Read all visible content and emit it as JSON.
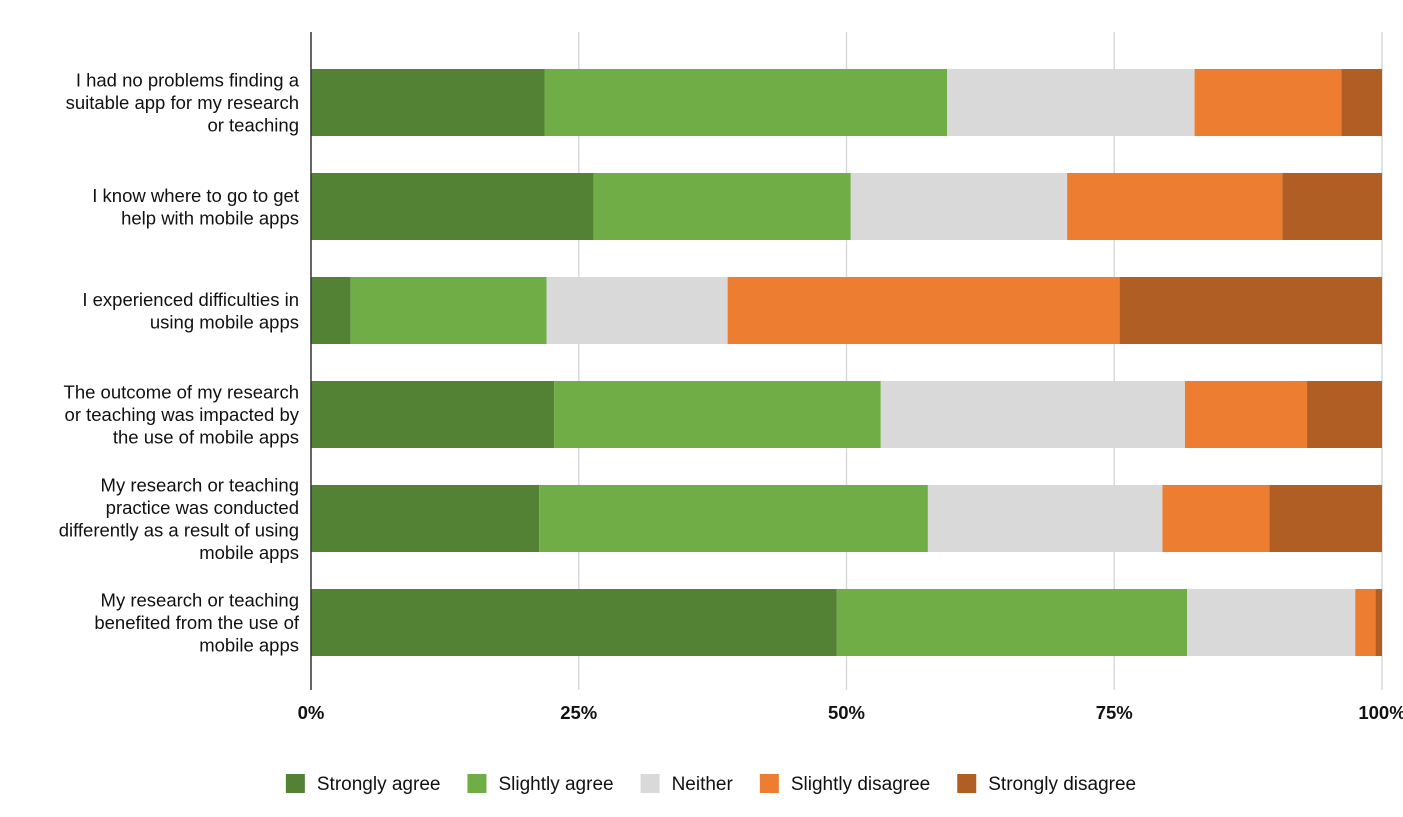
{
  "chart_data": {
    "type": "bar",
    "orientation": "horizontal",
    "stacked": "100%",
    "title": "",
    "xlabel": "",
    "ylabel": "",
    "xlim": [
      0,
      100
    ],
    "x_ticks": [
      "0%",
      "25%",
      "50%",
      "75%",
      "100%"
    ],
    "grid": true,
    "legend_position": "bottom",
    "categories": [
      [
        "I had no problems finding a",
        "suitable app for my research",
        "or teaching"
      ],
      [
        "I know where to go to get",
        "help with mobile apps"
      ],
      [
        "I experienced difficulties in",
        "using mobile apps"
      ],
      [
        "The outcome of my research",
        "or teaching was impacted by",
        "the use of mobile apps"
      ],
      [
        "My research or teaching",
        "practice was conducted",
        "differently as a result of using",
        "mobile apps"
      ],
      [
        "My research or teaching",
        "benefited from the use of",
        "mobile apps"
      ]
    ],
    "series": [
      {
        "name": "Strongly agree",
        "color": "#548235",
        "values": [
          21.8,
          26.4,
          3.7,
          22.7,
          21.3,
          49.1
        ]
      },
      {
        "name": "Slightly agree",
        "color": "#70AD47",
        "values": [
          37.6,
          24.0,
          18.3,
          30.5,
          36.3,
          32.7
        ]
      },
      {
        "name": "Neither",
        "color": "#D9D9D9",
        "values": [
          23.1,
          20.2,
          16.9,
          28.4,
          21.9,
          15.7
        ]
      },
      {
        "name": "Slightly disagree",
        "color": "#ED7D31",
        "values": [
          13.7,
          20.1,
          36.6,
          11.4,
          10.0,
          1.9
        ]
      },
      {
        "name": "Strongly disagree",
        "color": "#B05E24",
        "values": [
          3.8,
          9.3,
          24.5,
          7.0,
          10.5,
          0.6
        ]
      }
    ]
  }
}
